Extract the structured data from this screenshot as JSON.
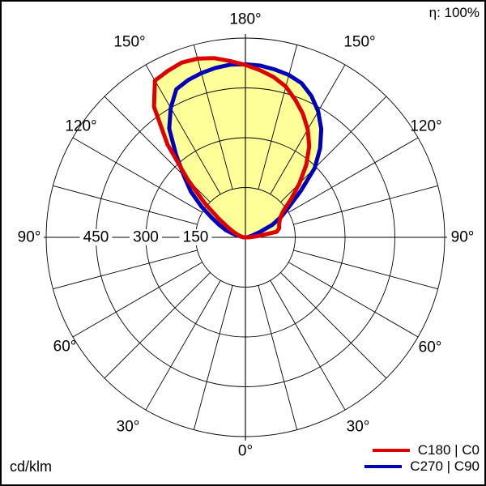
{
  "header": {
    "eta": "η: 100%"
  },
  "footer": {
    "unit": "cd/klm"
  },
  "legend": {
    "items": [
      {
        "label": "C180 | C0",
        "color": "#dd0000"
      },
      {
        "label": "C270 | C90",
        "color": "#0000bb"
      }
    ]
  },
  "chart_data": {
    "type": "polar",
    "subtype": "luminous-intensity-distribution",
    "unit": "cd/klm",
    "efficiency_label": "η: 100%",
    "efficiency_percent": 100,
    "orientation": "0-deg-at-bottom-180-at-top",
    "angle_axis": {
      "labeled_degrees": [
        0,
        30,
        60,
        90,
        120,
        150,
        180
      ],
      "label_suffix": "°",
      "spoke_step_deg": 15,
      "labels_on_both_sides": true
    },
    "radial_axis": {
      "max": 600,
      "ring_step": 150,
      "rings": [
        150,
        300,
        450,
        600
      ],
      "tick_labels": [
        "450",
        "300",
        "150"
      ],
      "tick_values": [
        450,
        300,
        150
      ]
    },
    "fill_color": "#ffff99",
    "grid_color": "#000000",
    "gamma_deg": [
      90,
      95,
      100,
      105,
      110,
      115,
      120,
      125,
      130,
      135,
      140,
      145,
      150,
      155,
      160,
      165,
      170,
      175,
      180
    ],
    "series": [
      {
        "name": "C180 | C0",
        "color": "#dd0000",
        "left_plane": "C180",
        "left_values": [
          5,
          8,
          12,
          18,
          28,
          42,
          62,
          98,
          160,
          245,
          365,
          480,
          545,
          553,
          560,
          557,
          548,
          533,
          519
        ],
        "right_plane": "C0",
        "right_values": [
          10,
          35,
          95,
          105,
          108,
          113,
          122,
          140,
          180,
          230,
          285,
          335,
          375,
          410,
          440,
          470,
          490,
          505,
          519
        ]
      },
      {
        "name": "C270 | C90",
        "color": "#0000bb",
        "left_plane": "C270",
        "left_values": [
          4,
          8,
          15,
          35,
          62,
          85,
          116,
          162,
          215,
          262,
          325,
          400,
          450,
          492,
          504,
          512,
          518,
          522,
          521
        ],
        "right_plane": "C90",
        "right_values": [
          3,
          6,
          12,
          22,
          45,
          90,
          125,
          160,
          218,
          295,
          350,
          398,
          438,
          470,
          494,
          506,
          513,
          519,
          521
        ]
      }
    ]
  }
}
